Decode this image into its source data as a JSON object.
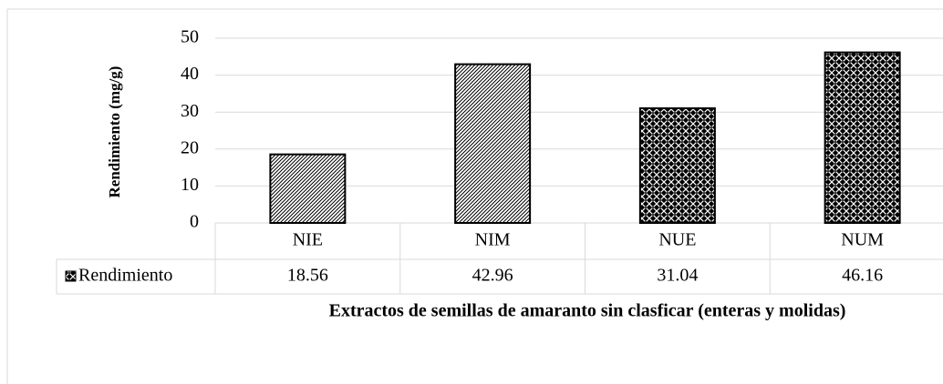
{
  "chart_data": {
    "type": "bar",
    "y_label": "Rendimiento (mg/g)",
    "x_label": "Extractos de semillas de amaranto sin clasficar (enteras y molidas)",
    "categories": [
      "NIE",
      "NIM",
      "NUE",
      "NUM"
    ],
    "series": [
      {
        "name": "Rendimiento",
        "color": "#000000",
        "values": [
          18.56,
          42.96,
          31.04,
          46.16
        ]
      }
    ],
    "patterns": [
      "diagonal",
      "diagonal",
      "dotted-cross",
      "dotted-cross"
    ],
    "ylim": [
      0,
      50
    ],
    "yticks": [
      0,
      10,
      20,
      30,
      40,
      50
    ],
    "grid": true,
    "data_table": true
  }
}
